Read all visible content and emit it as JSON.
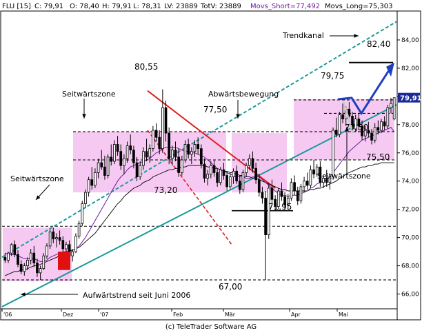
{
  "header": {
    "symbol": "FLU [15]",
    "close": "C: 79,91",
    "open": "O: 78,40",
    "high": "H: 79,91",
    "low": "L: 78,31",
    "last_volume": "LV: 23889",
    "total_volume": "TotV: 23889",
    "movs_short": "Movs_Short=77,492",
    "movs_long": "Movs_Long=75,303"
  },
  "footer": {
    "copyright": "(c) TeleTrader Software AG"
  },
  "colors": {
    "background": "#ffffff",
    "candle": "#000000",
    "zone_fill": "#f6c9f2",
    "red_line": "#e11d1d",
    "teal_line": "#1a9a99",
    "arrow_blue": "#1f3fbf",
    "ma_short": "#6a1b9a",
    "ma_long": "#000000",
    "price_tag": "#1c2a99",
    "red_box": "#e01010"
  },
  "chart_data": {
    "type": "candlestick",
    "title": "",
    "xlabel": "",
    "ylabel": "",
    "ylim": [
      65.0,
      86.0
    ],
    "y_ticks": [
      "66,00",
      "68,00",
      "70,00",
      "72,00",
      "74,00",
      "76,00",
      "78,00",
      "80,00",
      "82,00",
      "84,00"
    ],
    "x_ticks": [
      "'06",
      "Dez",
      "'07",
      "Feb",
      "Mär",
      "Apr",
      "Mai"
    ],
    "last_price": "79,91",
    "levels": [
      {
        "value": 70.8,
        "style": "dashed",
        "color": "#000000"
      },
      {
        "value": 67.0,
        "style": "dashed",
        "color": "#000000"
      },
      {
        "value": 75.5,
        "style": "dashed",
        "color": "#000000"
      },
      {
        "value": 77.5,
        "style": "dashed",
        "color": "#000000"
      },
      {
        "value": 79.75,
        "style": "dashed",
        "color": "#000000"
      },
      {
        "value": 78.8,
        "style": "dashed",
        "color": "#000000"
      }
    ],
    "zones": [
      {
        "from": 66.9,
        "to": 70.7
      },
      {
        "from": 73.2,
        "to": 77.5
      },
      {
        "from": 73.2,
        "to": 77.4
      },
      {
        "from": 75.5,
        "to": 79.8
      }
    ],
    "annotations": [
      {
        "label": "Seitwärtszone"
      },
      {
        "label": "Seitwärtszone"
      },
      {
        "label": "Abwärtsbewegung"
      },
      {
        "label": "Trendkanal"
      },
      {
        "label": "Seitwärtszone"
      },
      {
        "label": "Aufwärtstrend seit Juni 2006"
      }
    ],
    "value_labels": [
      "80,55",
      "77,50",
      "73,20",
      "71,95",
      "67,00",
      "79,75",
      "82,40",
      "77,50",
      "75,50"
    ],
    "ohlc": [
      [
        68.6,
        68.9,
        68.2,
        68.4
      ],
      [
        68.4,
        69.0,
        68.2,
        68.9
      ],
      [
        68.9,
        69.6,
        68.7,
        69.5
      ],
      [
        69.5,
        69.8,
        68.6,
        68.8
      ],
      [
        68.8,
        69.1,
        67.9,
        68.1
      ],
      [
        68.1,
        68.4,
        67.4,
        67.6
      ],
      [
        67.6,
        68.2,
        67.3,
        68.0
      ],
      [
        68.0,
        68.6,
        67.7,
        68.4
      ],
      [
        68.4,
        69.2,
        68.1,
        68.9
      ],
      [
        68.9,
        69.4,
        67.9,
        68.2
      ],
      [
        68.2,
        68.5,
        67.2,
        67.5
      ],
      [
        67.5,
        68.0,
        67.0,
        67.8
      ],
      [
        67.8,
        68.9,
        67.7,
        68.7
      ],
      [
        68.7,
        69.6,
        68.5,
        69.4
      ],
      [
        69.4,
        70.6,
        69.2,
        70.4
      ],
      [
        70.4,
        70.7,
        69.6,
        69.9
      ],
      [
        69.9,
        70.3,
        69.3,
        70.0
      ],
      [
        70.0,
        70.5,
        69.5,
        69.8
      ],
      [
        69.8,
        70.1,
        68.9,
        69.2
      ],
      [
        69.2,
        69.7,
        68.8,
        69.5
      ],
      [
        69.5,
        69.8,
        68.4,
        68.7
      ],
      [
        68.7,
        69.2,
        68.3,
        69.0
      ],
      [
        69.0,
        70.3,
        68.9,
        70.1
      ],
      [
        70.1,
        71.2,
        69.9,
        71.0
      ],
      [
        71.0,
        72.6,
        70.8,
        72.4
      ],
      [
        72.4,
        73.4,
        72.1,
        73.2
      ],
      [
        73.2,
        74.3,
        72.9,
        74.1
      ],
      [
        74.1,
        75.0,
        73.4,
        73.7
      ],
      [
        73.7,
        74.9,
        73.5,
        74.6
      ],
      [
        74.6,
        75.6,
        74.2,
        75.3
      ],
      [
        75.3,
        76.2,
        74.8,
        75.0
      ],
      [
        75.0,
        75.8,
        74.1,
        74.4
      ],
      [
        74.4,
        75.9,
        74.2,
        75.7
      ],
      [
        75.7,
        76.6,
        75.1,
        75.4
      ],
      [
        75.4,
        76.9,
        75.2,
        76.6
      ],
      [
        76.6,
        77.2,
        75.8,
        76.1
      ],
      [
        76.1,
        76.6,
        74.8,
        75.1
      ],
      [
        75.1,
        75.9,
        74.5,
        75.6
      ],
      [
        75.6,
        76.8,
        75.3,
        76.5
      ],
      [
        76.5,
        77.3,
        75.9,
        76.2
      ],
      [
        76.2,
        76.5,
        74.9,
        75.3
      ],
      [
        75.3,
        75.7,
        74.0,
        74.3
      ],
      [
        74.3,
        75.4,
        74.1,
        75.1
      ],
      [
        75.1,
        76.4,
        74.8,
        76.1
      ],
      [
        76.1,
        77.0,
        75.4,
        75.7
      ],
      [
        75.7,
        76.6,
        75.3,
        76.3
      ],
      [
        76.3,
        77.9,
        76.1,
        77.6
      ],
      [
        77.6,
        78.1,
        76.8,
        77.1
      ],
      [
        77.1,
        77.6,
        75.9,
        76.3
      ],
      [
        76.3,
        80.5,
        76.0,
        79.2
      ],
      [
        79.2,
        79.7,
        76.8,
        77.4
      ],
      [
        77.4,
        77.8,
        75.2,
        75.6
      ],
      [
        75.6,
        76.5,
        75.1,
        76.2
      ],
      [
        76.2,
        76.8,
        75.4,
        75.7
      ],
      [
        75.7,
        76.3,
        74.3,
        74.6
      ],
      [
        74.6,
        75.8,
        74.4,
        75.5
      ],
      [
        75.5,
        76.9,
        75.3,
        76.6
      ],
      [
        76.6,
        77.0,
        75.6,
        75.9
      ],
      [
        75.9,
        76.4,
        75.2,
        76.1
      ],
      [
        76.1,
        76.9,
        75.7,
        76.6
      ],
      [
        76.6,
        77.1,
        75.9,
        76.3
      ],
      [
        76.3,
        76.6,
        74.9,
        75.2
      ],
      [
        75.2,
        75.6,
        73.9,
        74.2
      ],
      [
        74.2,
        74.8,
        73.7,
        74.5
      ],
      [
        74.5,
        75.4,
        74.2,
        75.1
      ],
      [
        75.1,
        75.5,
        74.3,
        74.6
      ],
      [
        74.6,
        74.9,
        73.6,
        73.9
      ],
      [
        73.9,
        75.0,
        73.7,
        74.8
      ],
      [
        74.8,
        75.3,
        74.1,
        74.4
      ],
      [
        74.4,
        74.7,
        73.3,
        73.6
      ],
      [
        73.6,
        74.6,
        73.4,
        74.3
      ],
      [
        74.3,
        74.9,
        73.8,
        74.7
      ],
      [
        74.7,
        75.1,
        73.8,
        74.0
      ],
      [
        74.0,
        74.4,
        73.1,
        73.4
      ],
      [
        73.4,
        74.8,
        73.2,
        74.6
      ],
      [
        74.6,
        75.3,
        74.3,
        75.1
      ],
      [
        75.1,
        75.9,
        74.8,
        75.6
      ],
      [
        75.6,
        76.1,
        74.6,
        74.9
      ],
      [
        74.9,
        75.3,
        73.8,
        74.1
      ],
      [
        74.1,
        74.5,
        72.9,
        73.2
      ],
      [
        73.2,
        73.6,
        72.4,
        72.8
      ],
      [
        72.8,
        73.3,
        67.0,
        70.2
      ],
      [
        70.2,
        73.8,
        69.9,
        73.5
      ],
      [
        73.5,
        74.1,
        72.4,
        72.7
      ],
      [
        72.7,
        73.0,
        71.9,
        72.2
      ],
      [
        72.2,
        73.5,
        72.0,
        73.3
      ],
      [
        73.3,
        73.9,
        72.6,
        72.9
      ],
      [
        72.9,
        73.2,
        71.9,
        72.3
      ],
      [
        72.3,
        73.1,
        72.0,
        72.8
      ],
      [
        72.8,
        74.2,
        72.6,
        73.9
      ],
      [
        73.9,
        74.4,
        73.0,
        73.3
      ],
      [
        73.3,
        73.6,
        72.3,
        72.6
      ],
      [
        72.6,
        73.8,
        72.4,
        73.6
      ],
      [
        73.6,
        74.3,
        73.2,
        74.0
      ],
      [
        74.0,
        74.6,
        73.4,
        73.7
      ],
      [
        73.7,
        75.1,
        73.5,
        74.8
      ],
      [
        74.8,
        75.5,
        74.2,
        74.5
      ],
      [
        74.5,
        75.2,
        74.3,
        75.0
      ],
      [
        75.0,
        75.4,
        73.6,
        73.9
      ],
      [
        73.9,
        74.4,
        73.5,
        74.2
      ],
      [
        74.2,
        74.8,
        73.6,
        73.9
      ],
      [
        73.9,
        74.5,
        73.4,
        74.3
      ],
      [
        74.3,
        77.8,
        74.1,
        77.6
      ],
      [
        77.6,
        78.5,
        77.1,
        77.3
      ],
      [
        77.3,
        78.9,
        77.1,
        78.7
      ],
      [
        78.7,
        79.5,
        78.1,
        78.4
      ],
      [
        78.4,
        79.3,
        77.9,
        79.1
      ],
      [
        79.1,
        79.6,
        78.3,
        78.6
      ],
      [
        78.6,
        78.9,
        77.4,
        77.7
      ],
      [
        77.7,
        78.7,
        77.5,
        78.4
      ],
      [
        78.4,
        78.8,
        77.6,
        77.9
      ],
      [
        77.9,
        78.3,
        76.9,
        77.2
      ],
      [
        77.2,
        77.9,
        76.8,
        77.6
      ],
      [
        77.6,
        78.2,
        77.1,
        77.4
      ],
      [
        77.4,
        77.7,
        76.6,
        76.9
      ],
      [
        76.9,
        78.1,
        76.7,
        77.8
      ],
      [
        77.8,
        78.3,
        77.3,
        77.6
      ],
      [
        77.6,
        78.4,
        77.4,
        78.2
      ],
      [
        78.2,
        78.6,
        77.6,
        77.9
      ],
      [
        77.9,
        79.4,
        77.7,
        79.2
      ],
      [
        79.2,
        79.9,
        78.8,
        79.5
      ],
      [
        78.4,
        79.91,
        78.31,
        79.91
      ]
    ],
    "ma_short": [
      68.9,
      68.8,
      68.8,
      68.8,
      68.7,
      68.6,
      68.5,
      68.5,
      68.5,
      68.5,
      68.4,
      68.3,
      68.3,
      68.4,
      68.6,
      68.7,
      68.8,
      68.9,
      69.0,
      69.0,
      69.1,
      69.1,
      69.2,
      69.4,
      69.7,
      70.0,
      70.4,
      70.8,
      71.2,
      71.6,
      72.0,
      72.4,
      72.8,
      73.2,
      73.6,
      74.0,
      74.3,
      74.5,
      74.8,
      75.0,
      75.1,
      75.2,
      75.3,
      75.4,
      75.5,
      75.6,
      75.8,
      76.0,
      76.1,
      76.3,
      76.4,
      76.4,
      76.4,
      76.4,
      76.3,
      76.2,
      76.1,
      76.1,
      76.0,
      76.0,
      75.9,
      75.8,
      75.7,
      75.5,
      75.3,
      75.1,
      74.9,
      74.8,
      74.7,
      74.6,
      74.5,
      74.4,
      74.3,
      74.3,
      74.3,
      74.2,
      74.2,
      74.3,
      74.3,
      74.3,
      74.1,
      73.9,
      73.7,
      73.5,
      73.3,
      73.1,
      73.0,
      73.0,
      72.9,
      73.0,
      73.0,
      73.0,
      73.1,
      73.2,
      73.3,
      73.5,
      73.6,
      73.8,
      73.9,
      74.0,
      74.1,
      74.3,
      74.6,
      74.9,
      75.2,
      75.5,
      75.8,
      76.1,
      76.3,
      76.5,
      76.7,
      76.9,
      77.0,
      77.1,
      77.2,
      77.3,
      77.4,
      77.5,
      77.6,
      77.7,
      77.8,
      77.5
    ],
    "ma_long": [
      67.3,
      67.4,
      67.5,
      67.6,
      67.6,
      67.7,
      67.7,
      67.8,
      67.9,
      68.0,
      68.0,
      68.1,
      68.2,
      68.3,
      68.4,
      68.5,
      68.6,
      68.7,
      68.8,
      68.9,
      69.0,
      69.1,
      69.2,
      69.3,
      69.5,
      69.7,
      69.9,
      70.1,
      70.3,
      70.6,
      70.9,
      71.2,
      71.5,
      71.8,
      72.1,
      72.4,
      72.6,
      72.9,
      73.1,
      73.3,
      73.5,
      73.6,
      73.7,
      73.9,
      74.0,
      74.1,
      74.3,
      74.4,
      74.5,
      74.6,
      74.7,
      74.8,
      74.8,
      74.9,
      74.9,
      75.0,
      75.0,
      75.1,
      75.1,
      75.1,
      75.1,
      75.1,
      75.1,
      75.0,
      75.0,
      74.9,
      74.9,
      74.8,
      74.7,
      74.7,
      74.6,
      74.6,
      74.5,
      74.4,
      74.4,
      74.3,
      74.3,
      74.2,
      74.2,
      74.1,
      74.0,
      73.9,
      73.8,
      73.7,
      73.6,
      73.5,
      73.4,
      73.4,
      73.3,
      73.3,
      73.3,
      73.3,
      73.3,
      73.3,
      73.3,
      73.4,
      73.4,
      73.5,
      73.5,
      73.6,
      73.7,
      73.8,
      73.9,
      74.0,
      74.2,
      74.3,
      74.5,
      74.6,
      74.7,
      74.8,
      74.9,
      75.0,
      75.0,
      75.1,
      75.1,
      75.2,
      75.2,
      75.3,
      75.3,
      75.3,
      75.3,
      75.3
    ]
  }
}
